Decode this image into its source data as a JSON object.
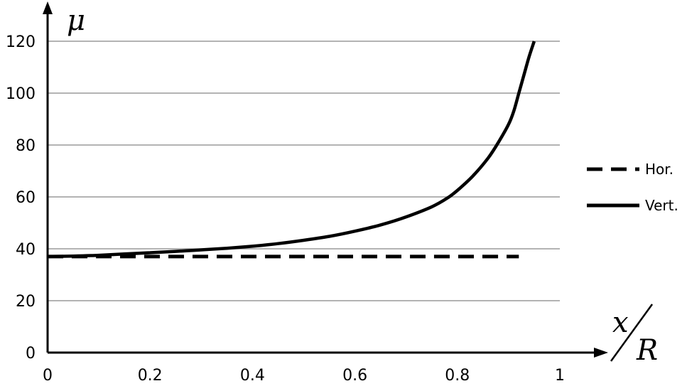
{
  "chart_data": {
    "type": "line",
    "title": "",
    "ylabel": "μ",
    "xlabel": {
      "numerator": "x",
      "denominator": "R"
    },
    "xlim": [
      0,
      1
    ],
    "ylim": [
      0,
      120
    ],
    "x_ticks": [
      0,
      0.2,
      0.4,
      0.6,
      0.8,
      1
    ],
    "x_tick_labels": [
      "0",
      "0.2",
      "0.4",
      "0.6",
      "0.8",
      "1"
    ],
    "y_ticks": [
      0,
      20,
      40,
      60,
      80,
      100,
      120
    ],
    "y_tick_labels": [
      "0",
      "20",
      "40",
      "60",
      "80",
      "100",
      "120"
    ],
    "grid": "horizontal",
    "legend_position": "right",
    "series": [
      {
        "name": "Hor.",
        "style": "dashed",
        "color": "#000000",
        "x": [
          0,
          0.1,
          0.2,
          0.3,
          0.4,
          0.5,
          0.6,
          0.7,
          0.8,
          0.92
        ],
        "y": [
          37,
          37,
          37,
          37,
          37,
          37,
          37,
          37,
          37,
          37
        ]
      },
      {
        "name": "Vert.",
        "style": "solid",
        "color": "#000000",
        "x": [
          0,
          0.05,
          0.1,
          0.15,
          0.2,
          0.25,
          0.3,
          0.35,
          0.4,
          0.45,
          0.5,
          0.55,
          0.6,
          0.65,
          0.7,
          0.75,
          0.78,
          0.8,
          0.83,
          0.86,
          0.88,
          0.9,
          0.91,
          0.92,
          0.93,
          0.94,
          0.95
        ],
        "y": [
          37,
          37.2,
          37.5,
          38,
          38.5,
          39,
          39.6,
          40.2,
          41,
          42,
          43.3,
          44.8,
          46.8,
          49.2,
          52.3,
          56.2,
          59.5,
          62.5,
          68,
          75,
          81,
          88,
          93,
          100,
          107,
          114,
          120
        ]
      }
    ]
  }
}
